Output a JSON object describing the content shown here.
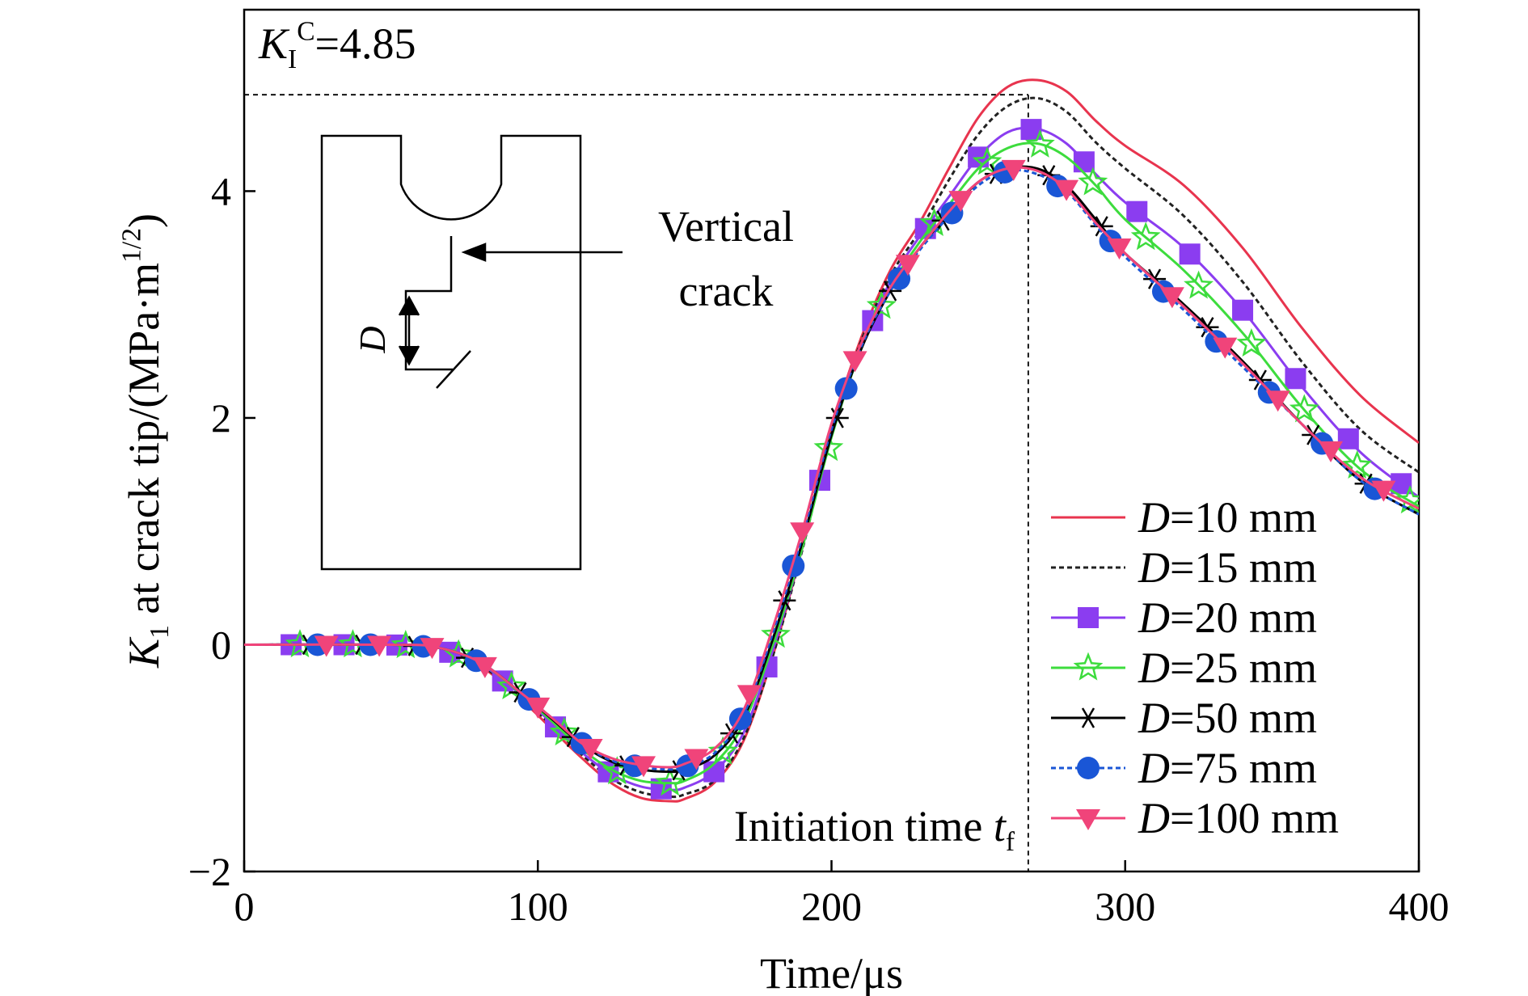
{
  "chart_data": {
    "type": "line",
    "xlabel": "Time/μs",
    "ylabel_main": "K",
    "ylabel_sub": "1",
    "ylabel_rest": " at crack tip/(MPa·m",
    "ylabel_exp": "1/2",
    "ylabel_close": ")",
    "xlim": [
      0,
      400
    ],
    "ylim": [
      -2,
      5.6
    ],
    "xticks": [
      0,
      100,
      200,
      300,
      400
    ],
    "yticks": [
      -2,
      0,
      2,
      4
    ],
    "xtick_labels": [
      "0",
      "100",
      "200",
      "300",
      "400"
    ],
    "ytick_labels": [
      "−2",
      "0",
      "2",
      "4"
    ],
    "grid": false,
    "legend_position": "bottom-right",
    "annotations": {
      "kic_label_main": "K",
      "kic_label_sub": "I",
      "kic_label_sup": "C",
      "kic_label_value": "=4.85",
      "kic_value": 4.85,
      "initiation_label": "Initiation time ",
      "initiation_symbol": "t",
      "initiation_sub": "f",
      "initiation_time": 267,
      "inset_arrow_label_line1": "Vertical",
      "inset_arrow_label_line2": "crack",
      "inset_dimension_label": "D"
    },
    "series": [
      {
        "name": "D=10 mm",
        "name_var": "D",
        "name_rest": "=10 mm",
        "color": "#e8344e",
        "dash": "solid",
        "marker": "none",
        "x": [
          0,
          50,
          65,
          80,
          95,
          105,
          115,
          125,
          135,
          145,
          150,
          160,
          170,
          180,
          190,
          200,
          210,
          220,
          230,
          240,
          250,
          260,
          270,
          280,
          290,
          300,
          320,
          340,
          360,
          380,
          400
        ],
        "y": [
          0,
          0,
          -0.02,
          -0.18,
          -0.5,
          -0.75,
          -1.0,
          -1.22,
          -1.35,
          -1.38,
          -1.36,
          -1.22,
          -0.85,
          -0.1,
          0.85,
          1.9,
          2.7,
          3.3,
          3.72,
          4.2,
          4.65,
          4.92,
          4.98,
          4.88,
          4.62,
          4.4,
          4.05,
          3.5,
          2.8,
          2.2,
          1.78
        ]
      },
      {
        "name": "D=15 mm",
        "name_var": "D",
        "name_rest": "=15 mm",
        "color": "#222222",
        "dash": "dotted",
        "marker": "none",
        "x": [
          0,
          50,
          65,
          80,
          95,
          105,
          115,
          125,
          135,
          145,
          150,
          160,
          170,
          180,
          190,
          200,
          210,
          220,
          230,
          240,
          250,
          260,
          270,
          280,
          290,
          300,
          320,
          340,
          360,
          380,
          400
        ],
        "y": [
          0,
          0,
          -0.02,
          -0.17,
          -0.48,
          -0.72,
          -0.97,
          -1.18,
          -1.3,
          -1.34,
          -1.32,
          -1.2,
          -0.83,
          -0.1,
          0.83,
          1.87,
          2.67,
          3.25,
          3.65,
          4.1,
          4.5,
          4.75,
          4.82,
          4.7,
          4.43,
          4.2,
          3.78,
          3.2,
          2.5,
          1.9,
          1.52
        ]
      },
      {
        "name": "D=20 mm",
        "name_var": "D",
        "name_rest": "=20 mm",
        "color": "#8b3df0",
        "dash": "solid",
        "marker": "square",
        "x": [
          0,
          50,
          65,
          80,
          95,
          105,
          115,
          125,
          135,
          145,
          150,
          160,
          170,
          180,
          190,
          200,
          210,
          220,
          230,
          240,
          250,
          260,
          270,
          280,
          290,
          300,
          320,
          340,
          360,
          380,
          400
        ],
        "y": [
          0,
          0,
          -0.02,
          -0.16,
          -0.46,
          -0.7,
          -0.95,
          -1.14,
          -1.25,
          -1.28,
          -1.26,
          -1.12,
          -0.78,
          -0.05,
          0.85,
          1.85,
          2.63,
          3.2,
          3.6,
          3.95,
          4.3,
          4.52,
          4.55,
          4.42,
          4.15,
          3.9,
          3.5,
          2.95,
          2.28,
          1.7,
          1.3
        ]
      },
      {
        "name": "D=25 mm",
        "name_var": "D",
        "name_rest": "=25 mm",
        "color": "#3ddc3d",
        "dash": "solid",
        "marker": "star",
        "x": [
          0,
          50,
          65,
          80,
          95,
          105,
          115,
          125,
          135,
          145,
          150,
          160,
          170,
          180,
          190,
          200,
          210,
          220,
          230,
          240,
          250,
          260,
          270,
          280,
          290,
          300,
          320,
          340,
          360,
          380,
          400
        ],
        "y": [
          0,
          0,
          -0.02,
          -0.15,
          -0.45,
          -0.68,
          -0.92,
          -1.1,
          -1.2,
          -1.22,
          -1.2,
          -1.05,
          -0.7,
          0.0,
          0.85,
          1.83,
          2.6,
          3.15,
          3.55,
          3.88,
          4.2,
          4.38,
          4.42,
          4.3,
          4.05,
          3.75,
          3.3,
          2.75,
          2.1,
          1.55,
          1.22
        ]
      },
      {
        "name": "D=50 mm",
        "name_var": "D",
        "name_rest": "=50 mm",
        "color": "#000000",
        "dash": "solid",
        "marker": "asterisk",
        "x": [
          0,
          50,
          65,
          80,
          95,
          105,
          115,
          125,
          135,
          145,
          150,
          160,
          170,
          180,
          190,
          200,
          210,
          220,
          230,
          240,
          250,
          260,
          270,
          280,
          290,
          300,
          320,
          340,
          360,
          380,
          400
        ],
        "y": [
          0,
          0,
          -0.02,
          -0.15,
          -0.44,
          -0.66,
          -0.88,
          -1.03,
          -1.1,
          -1.12,
          -1.1,
          -0.98,
          -0.65,
          0.05,
          0.9,
          1.85,
          2.6,
          3.12,
          3.5,
          3.8,
          4.08,
          4.2,
          4.2,
          4.05,
          3.75,
          3.45,
          3.0,
          2.5,
          1.95,
          1.45,
          1.15
        ]
      },
      {
        "name": "D=75 mm",
        "name_var": "D",
        "name_rest": "=75 mm",
        "color": "#1a56d6",
        "dash": "dotted",
        "marker": "circle",
        "x": [
          0,
          50,
          65,
          80,
          95,
          105,
          115,
          125,
          135,
          145,
          150,
          160,
          170,
          180,
          190,
          200,
          210,
          220,
          230,
          240,
          250,
          260,
          270,
          280,
          290,
          300,
          320,
          340,
          360,
          380,
          400
        ],
        "y": [
          0,
          0,
          -0.02,
          -0.15,
          -0.44,
          -0.65,
          -0.87,
          -1.02,
          -1.08,
          -1.1,
          -1.08,
          -0.96,
          -0.62,
          0.1,
          0.95,
          1.9,
          2.62,
          3.12,
          3.48,
          3.78,
          4.05,
          4.18,
          4.15,
          4.0,
          3.7,
          3.42,
          2.95,
          2.45,
          1.95,
          1.45,
          1.15
        ]
      },
      {
        "name": "D=100 mm",
        "name_var": "D",
        "name_rest": "=100 mm",
        "color": "#f0447a",
        "dash": "solid",
        "marker": "triangle-down",
        "x": [
          0,
          50,
          65,
          80,
          95,
          105,
          115,
          125,
          135,
          145,
          150,
          160,
          170,
          180,
          190,
          200,
          210,
          220,
          230,
          240,
          250,
          260,
          270,
          280,
          290,
          300,
          320,
          340,
          360,
          380,
          400
        ],
        "y": [
          0,
          0,
          -0.02,
          -0.15,
          -0.44,
          -0.65,
          -0.87,
          -1.0,
          -1.06,
          -1.08,
          -1.05,
          -0.92,
          -0.58,
          0.15,
          1.0,
          1.95,
          2.65,
          3.15,
          3.5,
          3.82,
          4.08,
          4.2,
          4.18,
          4.02,
          3.72,
          3.45,
          2.98,
          2.48,
          1.95,
          1.48,
          1.2
        ]
      }
    ]
  }
}
